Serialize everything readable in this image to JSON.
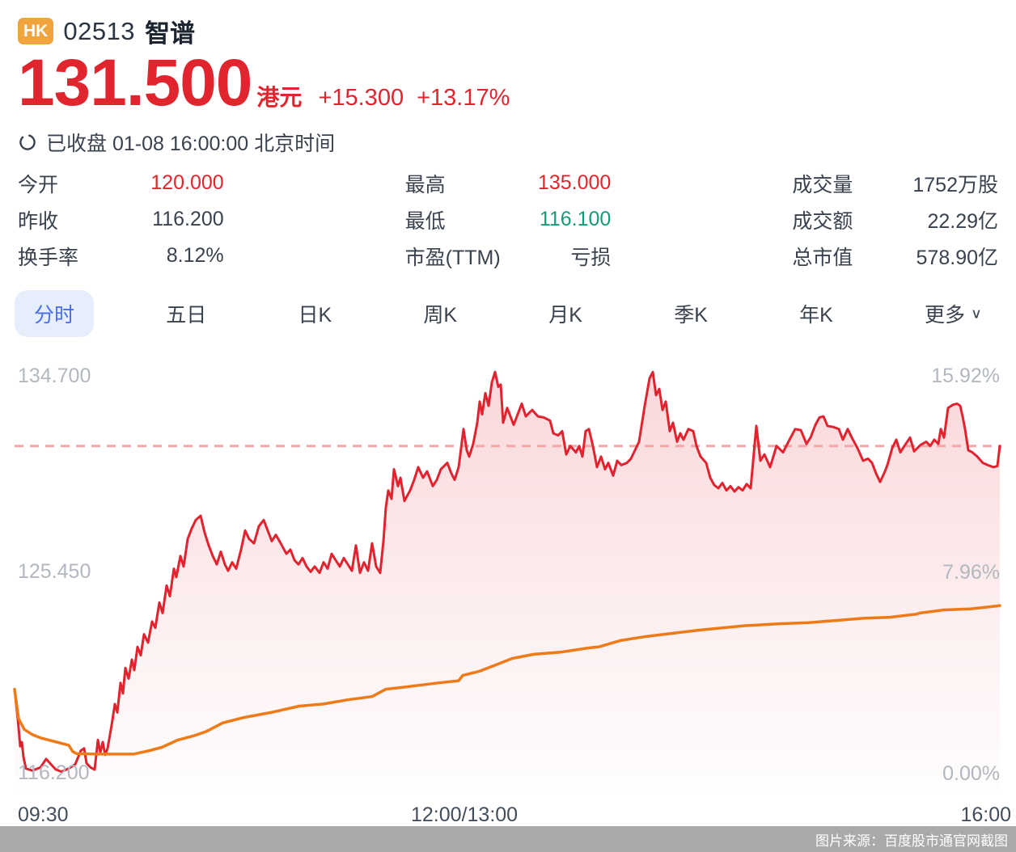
{
  "header": {
    "market_badge": "HK",
    "code": "02513",
    "name": "智谱",
    "price": "131.500",
    "currency": "港元",
    "change": "+15.300",
    "change_pct": "+13.17%",
    "status": "已收盘 01-08 16:00:00 北京时间"
  },
  "stats": {
    "rows": [
      {
        "label": "今开",
        "value": "120.000"
      },
      {
        "label": "最高",
        "value": "135.000"
      },
      {
        "label": "成交量",
        "value": "1752万股"
      },
      {
        "label": "昨收",
        "value": "116.200"
      },
      {
        "label": "最低",
        "value": "116.100"
      },
      {
        "label": "成交额",
        "value": "22.29亿"
      },
      {
        "label": "换手率",
        "value": "8.12%"
      },
      {
        "label": "市盈(TTM)",
        "value": "亏损"
      },
      {
        "label": "总市值",
        "value": "578.90亿"
      }
    ]
  },
  "tabs": {
    "items": [
      {
        "label": "分时"
      },
      {
        "label": "五日"
      },
      {
        "label": "日K"
      },
      {
        "label": "周K"
      },
      {
        "label": "月K"
      },
      {
        "label": "季K"
      },
      {
        "label": "年K"
      },
      {
        "label": "更多"
      }
    ],
    "more_chevron": "∨"
  },
  "chart_data": {
    "type": "line",
    "x_labels": [
      "09:30",
      "12:00/13:00",
      "16:00"
    ],
    "y_axis_left": [
      "134.700",
      "125.450",
      "116.200"
    ],
    "y_axis_right": [
      "15.92%",
      "7.96%",
      "0.00%"
    ],
    "y_min": 116.2,
    "y_max": 134.7,
    "prev_close": 116.2,
    "open": 120.0,
    "high": 135.0,
    "low": 116.1,
    "last_price": 131.5,
    "reference_line": {
      "price": 131.5,
      "style": "dashed",
      "color": "#f5a6a6"
    },
    "colors": {
      "price_line": "#e0232f",
      "avg_line": "#ee7a18",
      "fill": "#e0232f"
    },
    "series": [
      {
        "name": "price",
        "points": [
          [
            0,
            120.0
          ],
          [
            4,
            118.6
          ],
          [
            7,
            117.3
          ],
          [
            9,
            117.5
          ],
          [
            11,
            116.8
          ],
          [
            14,
            116.25
          ],
          [
            22,
            116.15
          ],
          [
            32,
            116.3
          ],
          [
            39,
            116.7
          ],
          [
            45,
            116.45
          ],
          [
            51,
            116.2
          ],
          [
            58,
            116.1
          ],
          [
            67,
            116.25
          ],
          [
            75,
            116.45
          ],
          [
            82,
            117.1
          ],
          [
            86,
            117.2
          ],
          [
            89,
            116.5
          ],
          [
            94,
            116.3
          ],
          [
            99,
            116.2
          ],
          [
            103,
            117.6
          ],
          [
            106,
            117.0
          ],
          [
            109,
            117.5
          ],
          [
            112,
            116.9
          ],
          [
            115,
            117.2
          ],
          [
            120,
            118.3
          ],
          [
            124,
            119.3
          ],
          [
            127,
            118.9
          ],
          [
            131,
            120.3
          ],
          [
            134,
            119.8
          ],
          [
            137,
            121.0
          ],
          [
            141,
            120.5
          ],
          [
            145,
            121.4
          ],
          [
            148,
            120.9
          ],
          [
            152,
            122.0
          ],
          [
            156,
            121.6
          ],
          [
            160,
            122.6
          ],
          [
            165,
            122.2
          ],
          [
            170,
            123.2
          ],
          [
            174,
            122.9
          ],
          [
            179,
            124.1
          ],
          [
            183,
            123.6
          ],
          [
            188,
            124.9
          ],
          [
            192,
            124.4
          ],
          [
            197,
            125.7
          ],
          [
            200,
            125.3
          ],
          [
            205,
            126.3
          ],
          [
            209,
            125.8
          ],
          [
            214,
            127.1
          ],
          [
            219,
            127.6
          ],
          [
            224,
            128.0
          ],
          [
            230,
            128.2
          ],
          [
            235,
            127.4
          ],
          [
            240,
            126.8
          ],
          [
            245,
            126.3
          ],
          [
            250,
            125.9
          ],
          [
            255,
            126.5
          ],
          [
            260,
            125.9
          ],
          [
            264,
            125.6
          ],
          [
            269,
            126.0
          ],
          [
            274,
            125.7
          ],
          [
            280,
            126.6
          ],
          [
            285,
            127.5
          ],
          [
            290,
            127.1
          ],
          [
            296,
            126.9
          ],
          [
            302,
            127.7
          ],
          [
            308,
            128.0
          ],
          [
            313,
            127.5
          ],
          [
            318,
            127.0
          ],
          [
            323,
            127.3
          ],
          [
            329,
            126.9
          ],
          [
            336,
            126.4
          ],
          [
            341,
            126.6
          ],
          [
            346,
            126.1
          ],
          [
            351,
            125.9
          ],
          [
            356,
            126.2
          ],
          [
            361,
            125.8
          ],
          [
            366,
            125.55
          ],
          [
            371,
            125.8
          ],
          [
            377,
            125.5
          ],
          [
            382,
            126.0
          ],
          [
            387,
            125.7
          ],
          [
            392,
            126.4
          ],
          [
            397,
            126.1
          ],
          [
            402,
            125.8
          ],
          [
            407,
            126.2
          ],
          [
            412,
            125.9
          ],
          [
            417,
            125.6
          ],
          [
            422,
            126.8
          ],
          [
            427,
            125.5
          ],
          [
            432,
            126.0
          ],
          [
            437,
            125.6
          ],
          [
            442,
            126.9
          ],
          [
            447,
            125.8
          ],
          [
            452,
            125.5
          ],
          [
            456,
            127.0
          ],
          [
            459,
            128.6
          ],
          [
            462,
            129.4
          ],
          [
            466,
            129.0
          ],
          [
            469,
            130.4
          ],
          [
            474,
            129.6
          ],
          [
            477,
            130.0
          ],
          [
            482,
            128.9
          ],
          [
            489,
            129.4
          ],
          [
            494,
            129.9
          ],
          [
            499,
            130.5
          ],
          [
            505,
            130.0
          ],
          [
            510,
            130.3
          ],
          [
            517,
            129.6
          ],
          [
            522,
            129.9
          ],
          [
            527,
            130.4
          ],
          [
            535,
            130.7
          ],
          [
            540,
            130.2
          ],
          [
            544,
            129.9
          ],
          [
            549,
            130.5
          ],
          [
            555,
            132.3
          ],
          [
            559,
            131.3
          ],
          [
            562,
            131.0
          ],
          [
            567,
            131.6
          ],
          [
            572,
            132.6
          ],
          [
            575,
            133.6
          ],
          [
            578,
            133.0
          ],
          [
            582,
            134.0
          ],
          [
            586,
            133.4
          ],
          [
            590,
            134.5
          ],
          [
            594,
            135.0
          ],
          [
            598,
            134.3
          ],
          [
            601,
            134.4
          ],
          [
            604,
            132.6
          ],
          [
            609,
            133.3
          ],
          [
            614,
            132.8
          ],
          [
            617,
            132.5
          ],
          [
            622,
            133.0
          ],
          [
            627,
            133.5
          ],
          [
            632,
            132.9
          ],
          [
            637,
            133.1
          ],
          [
            640,
            133.2
          ],
          [
            647,
            132.9
          ],
          [
            654,
            132.85
          ],
          [
            662,
            132.7
          ],
          [
            666,
            132.1
          ],
          [
            672,
            132.0
          ],
          [
            677,
            132.2
          ],
          [
            682,
            131.1
          ],
          [
            687,
            131.5
          ],
          [
            694,
            131.2
          ],
          [
            698,
            131.5
          ],
          [
            702,
            131.0
          ],
          [
            706,
            132.2
          ],
          [
            710,
            132.3
          ],
          [
            715,
            131.5
          ],
          [
            720,
            130.5
          ],
          [
            725,
            131.0
          ],
          [
            730,
            130.4
          ],
          [
            734,
            130.7
          ],
          [
            740,
            130.1
          ],
          [
            745,
            130.8
          ],
          [
            750,
            130.6
          ],
          [
            757,
            130.7
          ],
          [
            762,
            130.9
          ],
          [
            772,
            131.7
          ],
          [
            779,
            133.4
          ],
          [
            785,
            134.7
          ],
          [
            789,
            135.0
          ],
          [
            793,
            133.9
          ],
          [
            797,
            134.2
          ],
          [
            801,
            133.2
          ],
          [
            805,
            133.6
          ],
          [
            810,
            132.2
          ],
          [
            814,
            132.6
          ],
          [
            819,
            131.7
          ],
          [
            823,
            132.1
          ],
          [
            827,
            131.8
          ],
          [
            833,
            132.3
          ],
          [
            839,
            132.2
          ],
          [
            843,
            131.5
          ],
          [
            848,
            131.0
          ],
          [
            855,
            130.7
          ],
          [
            860,
            130.0
          ],
          [
            865,
            129.65
          ],
          [
            870,
            129.5
          ],
          [
            875,
            129.75
          ],
          [
            880,
            129.4
          ],
          [
            885,
            129.6
          ],
          [
            890,
            129.35
          ],
          [
            895,
            129.55
          ],
          [
            900,
            129.4
          ],
          [
            905,
            129.7
          ],
          [
            910,
            129.5
          ],
          [
            917,
            132.45
          ],
          [
            922,
            130.8
          ],
          [
            927,
            131.1
          ],
          [
            934,
            130.5
          ],
          [
            942,
            131.5
          ],
          [
            950,
            131.2
          ],
          [
            958,
            131.8
          ],
          [
            965,
            132.3
          ],
          [
            972,
            132.25
          ],
          [
            979,
            131.6
          ],
          [
            984,
            131.9
          ],
          [
            990,
            132.5
          ],
          [
            995,
            132.85
          ],
          [
            1000,
            132.9
          ],
          [
            1005,
            132.45
          ],
          [
            1012,
            132.4
          ],
          [
            1019,
            132.3
          ],
          [
            1024,
            131.8
          ],
          [
            1030,
            132.3
          ],
          [
            1035,
            131.9
          ],
          [
            1042,
            131.4
          ],
          [
            1049,
            130.8
          ],
          [
            1055,
            130.9
          ],
          [
            1060,
            130.7
          ],
          [
            1065,
            130.2
          ],
          [
            1070,
            129.8
          ],
          [
            1076,
            130.3
          ],
          [
            1079,
            130.6
          ],
          [
            1085,
            131.4
          ],
          [
            1090,
            131.8
          ],
          [
            1095,
            131.2
          ],
          [
            1100,
            131.5
          ],
          [
            1107,
            131.9
          ],
          [
            1112,
            131.25
          ],
          [
            1120,
            131.55
          ],
          [
            1127,
            131.7
          ],
          [
            1132,
            131.5
          ],
          [
            1137,
            131.8
          ],
          [
            1142,
            131.6
          ],
          [
            1145,
            132.3
          ],
          [
            1149,
            131.9
          ],
          [
            1154,
            133.3
          ],
          [
            1160,
            133.45
          ],
          [
            1165,
            133.5
          ],
          [
            1169,
            133.4
          ],
          [
            1172,
            132.9
          ],
          [
            1175,
            132.3
          ],
          [
            1179,
            131.3
          ],
          [
            1184,
            131.2
          ],
          [
            1190,
            131.0
          ],
          [
            1197,
            130.7
          ],
          [
            1203,
            130.6
          ],
          [
            1210,
            130.5
          ],
          [
            1215,
            130.55
          ],
          [
            1218,
            131.5
          ]
        ]
      },
      {
        "name": "avg",
        "points": [
          [
            0,
            120.0
          ],
          [
            5,
            118.6
          ],
          [
            12,
            118.1
          ],
          [
            22,
            117.85
          ],
          [
            32,
            117.7
          ],
          [
            42,
            117.6
          ],
          [
            52,
            117.5
          ],
          [
            67,
            117.35
          ],
          [
            72,
            117.05
          ],
          [
            77,
            116.95
          ],
          [
            102,
            116.93
          ],
          [
            147,
            116.93
          ],
          [
            167,
            117.1
          ],
          [
            182,
            117.25
          ],
          [
            202,
            117.6
          ],
          [
            222,
            117.8
          ],
          [
            237,
            118.0
          ],
          [
            257,
            118.4
          ],
          [
            282,
            118.65
          ],
          [
            317,
            118.9
          ],
          [
            352,
            119.2
          ],
          [
            382,
            119.3
          ],
          [
            412,
            119.5
          ],
          [
            442,
            119.65
          ],
          [
            459,
            120.0
          ],
          [
            482,
            120.1
          ],
          [
            525,
            120.3
          ],
          [
            549,
            120.4
          ],
          [
            554,
            120.65
          ],
          [
            575,
            120.85
          ],
          [
            595,
            121.15
          ],
          [
            615,
            121.45
          ],
          [
            642,
            121.65
          ],
          [
            675,
            121.75
          ],
          [
            709,
            121.95
          ],
          [
            722,
            122.0
          ],
          [
            749,
            122.3
          ],
          [
            782,
            122.5
          ],
          [
            815,
            122.65
          ],
          [
            849,
            122.8
          ],
          [
            902,
            123.0
          ],
          [
            949,
            123.1
          ],
          [
            982,
            123.15
          ],
          [
            1015,
            123.25
          ],
          [
            1049,
            123.35
          ],
          [
            1082,
            123.4
          ],
          [
            1115,
            123.55
          ],
          [
            1119,
            123.6
          ],
          [
            1149,
            123.75
          ],
          [
            1182,
            123.8
          ],
          [
            1218,
            123.95
          ]
        ]
      }
    ]
  },
  "footer": {
    "credit": "图片来源：百度股市通官网截图"
  }
}
